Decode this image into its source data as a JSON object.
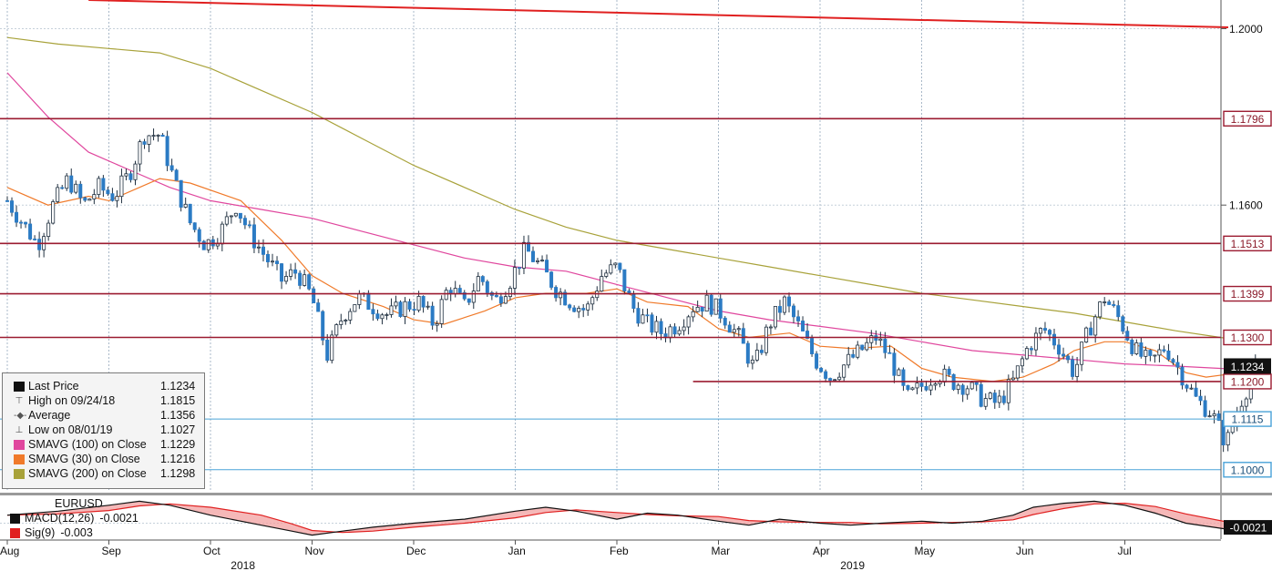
{
  "chart_data": {
    "type": "candlestick",
    "instrument": "EURUSD",
    "x_axis": {
      "months": [
        "Aug",
        "Sep",
        "Oct",
        "Nov",
        "Dec",
        "Jan",
        "Feb",
        "Mar",
        "Apr",
        "May",
        "Jun",
        "Jul"
      ],
      "years": [
        "2018",
        "2019"
      ]
    },
    "y_axis": {
      "range": [
        1.095,
        1.2065
      ],
      "tick_labels": [
        "1.2000",
        "1.1600"
      ]
    },
    "price_levels": [
      {
        "label": "1.1796",
        "value": 1.1796,
        "style": "horizontal-line",
        "color": "#9b1b30"
      },
      {
        "label": "1.1513",
        "value": 1.1513,
        "style": "horizontal-line",
        "color": "#9b1b30"
      },
      {
        "label": "1.1399",
        "value": 1.1399,
        "style": "horizontal-line",
        "color": "#9b1b30"
      },
      {
        "label": "1.1300",
        "value": 1.13,
        "style": "horizontal-line",
        "color": "#9b1b30"
      },
      {
        "label": "1.1200",
        "value": 1.12,
        "style": "horizontal-line",
        "color": "#9b1b30"
      },
      {
        "label": "1.1115",
        "value": 1.1115,
        "style": "horizontal-line",
        "color": "#4aa3d8"
      },
      {
        "label": "1.1000",
        "value": 1.1,
        "style": "horizontal-line",
        "color": "#4aa3d8"
      }
    ],
    "last_price_label": "1.1234",
    "trendline": {
      "from": [
        0.8,
        1.2065
      ],
      "to": [
        12.0,
        1.2003
      ],
      "color": "#e02020"
    },
    "legend": [
      {
        "label": "Last Price",
        "value": "1.1234",
        "symbol": "square",
        "color": "#111111"
      },
      {
        "label": "High on 09/24/18",
        "value": "1.1815",
        "symbol": "high-marker",
        "color": "#555555"
      },
      {
        "label": "Average",
        "value": "1.1356",
        "symbol": "avg-marker",
        "color": "#555555"
      },
      {
        "label": "Low on 08/01/19",
        "value": "1.1027",
        "symbol": "low-marker",
        "color": "#555555"
      },
      {
        "label": "SMAVG (100)  on Close",
        "value": "1.1229",
        "symbol": "square",
        "color": "#e0479e"
      },
      {
        "label": "SMAVG (30)  on Close",
        "value": "1.1216",
        "symbol": "square",
        "color": "#f07a2a"
      },
      {
        "label": "SMAVG (200)  on Close",
        "value": "1.1298",
        "symbol": "square",
        "color": "#a8a23a"
      }
    ],
    "sma": {
      "sma30": {
        "color": "#f07a2a",
        "points": [
          [
            0,
            1.164
          ],
          [
            0.4,
            1.16
          ],
          [
            0.8,
            1.162
          ],
          [
            1.0,
            1.161
          ],
          [
            1.3,
            1.164
          ],
          [
            1.5,
            1.166
          ],
          [
            1.8,
            1.165
          ],
          [
            2.3,
            1.161
          ],
          [
            2.7,
            1.152
          ],
          [
            3.0,
            1.144
          ],
          [
            3.3,
            1.14
          ],
          [
            3.7,
            1.137
          ],
          [
            4.0,
            1.134
          ],
          [
            4.3,
            1.133
          ],
          [
            4.7,
            1.136
          ],
          [
            5.0,
            1.139
          ],
          [
            5.3,
            1.14
          ],
          [
            5.7,
            1.14
          ],
          [
            6.0,
            1.141
          ],
          [
            6.3,
            1.138
          ],
          [
            6.7,
            1.137
          ],
          [
            7.0,
            1.132
          ],
          [
            7.3,
            1.13
          ],
          [
            7.7,
            1.131
          ],
          [
            8.0,
            1.128
          ],
          [
            8.3,
            1.1275
          ],
          [
            8.7,
            1.128
          ],
          [
            9.0,
            1.123
          ],
          [
            9.3,
            1.121
          ],
          [
            9.7,
            1.12
          ],
          [
            10.0,
            1.121
          ],
          [
            10.3,
            1.124
          ],
          [
            10.5,
            1.127
          ],
          [
            10.8,
            1.129
          ],
          [
            11.0,
            1.129
          ],
          [
            11.3,
            1.127
          ],
          [
            11.6,
            1.122
          ],
          [
            11.8,
            1.121
          ],
          [
            12.0,
            1.1216
          ]
        ]
      },
      "sma100": {
        "color": "#e0479e",
        "points": [
          [
            0,
            1.19
          ],
          [
            0.4,
            1.18
          ],
          [
            0.8,
            1.172
          ],
          [
            1.2,
            1.168
          ],
          [
            1.6,
            1.164
          ],
          [
            2.0,
            1.161
          ],
          [
            2.5,
            1.159
          ],
          [
            3.0,
            1.157
          ],
          [
            3.5,
            1.154
          ],
          [
            4.0,
            1.151
          ],
          [
            4.5,
            1.148
          ],
          [
            5.0,
            1.146
          ],
          [
            5.5,
            1.145
          ],
          [
            6.0,
            1.142
          ],
          [
            6.5,
            1.139
          ],
          [
            7.0,
            1.136
          ],
          [
            7.5,
            1.134
          ],
          [
            8.0,
            1.1325
          ],
          [
            8.5,
            1.131
          ],
          [
            9.0,
            1.129
          ],
          [
            9.5,
            1.127
          ],
          [
            10.0,
            1.126
          ],
          [
            10.5,
            1.125
          ],
          [
            11.0,
            1.124
          ],
          [
            11.5,
            1.1235
          ],
          [
            12.0,
            1.1229
          ]
        ]
      },
      "sma200": {
        "color": "#a8a23a",
        "points": [
          [
            0,
            1.198
          ],
          [
            0.5,
            1.1965
          ],
          [
            1.0,
            1.1955
          ],
          [
            1.5,
            1.1945
          ],
          [
            2.0,
            1.191
          ],
          [
            2.5,
            1.186
          ],
          [
            3.0,
            1.181
          ],
          [
            3.5,
            1.175
          ],
          [
            4.0,
            1.169
          ],
          [
            4.5,
            1.164
          ],
          [
            5.0,
            1.159
          ],
          [
            5.5,
            1.155
          ],
          [
            6.0,
            1.152
          ],
          [
            6.5,
            1.15
          ],
          [
            7.0,
            1.148
          ],
          [
            7.5,
            1.146
          ],
          [
            8.0,
            1.144
          ],
          [
            8.5,
            1.142
          ],
          [
            9.0,
            1.14
          ],
          [
            9.5,
            1.1385
          ],
          [
            10.0,
            1.137
          ],
          [
            10.5,
            1.1355
          ],
          [
            11.0,
            1.1335
          ],
          [
            11.5,
            1.1315
          ],
          [
            12.0,
            1.1298
          ]
        ]
      }
    },
    "price_path": [
      [
        0.0,
        1.161
      ],
      [
        0.15,
        1.156
      ],
      [
        0.3,
        1.151
      ],
      [
        0.45,
        1.16
      ],
      [
        0.6,
        1.166
      ],
      [
        0.75,
        1.16
      ],
      [
        0.9,
        1.164
      ],
      [
        1.05,
        1.162
      ],
      [
        1.2,
        1.167
      ],
      [
        1.35,
        1.176
      ],
      [
        1.5,
        1.176
      ],
      [
        1.65,
        1.165
      ],
      [
        1.8,
        1.156
      ],
      [
        1.95,
        1.151
      ],
      [
        2.1,
        1.154
      ],
      [
        2.25,
        1.16
      ],
      [
        2.4,
        1.153
      ],
      [
        2.55,
        1.148
      ],
      [
        2.7,
        1.143
      ],
      [
        2.85,
        1.145
      ],
      [
        3.0,
        1.139
      ],
      [
        3.15,
        1.126
      ],
      [
        3.3,
        1.135
      ],
      [
        3.45,
        1.139
      ],
      [
        3.6,
        1.137
      ],
      [
        3.75,
        1.135
      ],
      [
        3.9,
        1.137
      ],
      [
        4.05,
        1.138
      ],
      [
        4.2,
        1.133
      ],
      [
        4.35,
        1.142
      ],
      [
        4.5,
        1.137
      ],
      [
        4.65,
        1.144
      ],
      [
        4.8,
        1.138
      ],
      [
        4.95,
        1.143
      ],
      [
        5.1,
        1.15
      ],
      [
        5.25,
        1.146
      ],
      [
        5.4,
        1.141
      ],
      [
        5.55,
        1.138
      ],
      [
        5.7,
        1.136
      ],
      [
        5.85,
        1.144
      ],
      [
        6.0,
        1.146
      ],
      [
        6.15,
        1.137
      ],
      [
        6.3,
        1.133
      ],
      [
        6.45,
        1.131
      ],
      [
        6.6,
        1.133
      ],
      [
        6.75,
        1.137
      ],
      [
        6.9,
        1.138
      ],
      [
        7.05,
        1.135
      ],
      [
        7.2,
        1.13
      ],
      [
        7.35,
        1.123
      ],
      [
        7.5,
        1.133
      ],
      [
        7.65,
        1.138
      ],
      [
        7.8,
        1.132
      ],
      [
        7.95,
        1.125
      ],
      [
        8.1,
        1.121
      ],
      [
        8.25,
        1.124
      ],
      [
        8.4,
        1.127
      ],
      [
        8.55,
        1.13
      ],
      [
        8.7,
        1.125
      ],
      [
        8.85,
        1.116
      ],
      [
        9.0,
        1.119
      ],
      [
        9.15,
        1.122
      ],
      [
        9.3,
        1.12
      ],
      [
        9.45,
        1.119
      ],
      [
        9.6,
        1.116
      ],
      [
        9.75,
        1.115
      ],
      [
        9.9,
        1.12
      ],
      [
        10.05,
        1.128
      ],
      [
        10.2,
        1.132
      ],
      [
        10.35,
        1.128
      ],
      [
        10.5,
        1.122
      ],
      [
        10.65,
        1.132
      ],
      [
        10.8,
        1.139
      ],
      [
        10.95,
        1.134
      ],
      [
        11.1,
        1.127
      ],
      [
        11.25,
        1.124
      ],
      [
        11.4,
        1.128
      ],
      [
        11.55,
        1.122
      ],
      [
        11.7,
        1.116
      ],
      [
        11.85,
        1.113
      ],
      [
        12.0,
        1.106
      ],
      [
        12.15,
        1.116
      ],
      [
        12.3,
        1.1234
      ]
    ],
    "macd": {
      "label": "MACD(12,26)",
      "value": "-0.0021",
      "signal_label": "Sig(9)",
      "signal_value": "-0.003",
      "last_label": "-0.0021",
      "color": "#111111",
      "signal_color": "#e02020",
      "points": [
        [
          0,
          0.004
        ],
        [
          0.5,
          0.006
        ],
        [
          1.0,
          0.009
        ],
        [
          1.3,
          0.011
        ],
        [
          1.6,
          0.009
        ],
        [
          2.0,
          0.004
        ],
        [
          2.5,
          -0.001
        ],
        [
          2.8,
          -0.004
        ],
        [
          3.0,
          -0.006
        ],
        [
          3.3,
          -0.004
        ],
        [
          3.6,
          -0.002
        ],
        [
          4.0,
          0.0
        ],
        [
          4.5,
          0.002
        ],
        [
          5.0,
          0.006
        ],
        [
          5.3,
          0.008
        ],
        [
          5.6,
          0.006
        ],
        [
          6.0,
          0.002
        ],
        [
          6.3,
          0.005
        ],
        [
          6.6,
          0.004
        ],
        [
          7.0,
          0.001
        ],
        [
          7.3,
          -0.001
        ],
        [
          7.6,
          0.002
        ],
        [
          8.0,
          0.0
        ],
        [
          8.3,
          -0.001
        ],
        [
          8.6,
          0.0
        ],
        [
          9.0,
          0.001
        ],
        [
          9.3,
          0.0
        ],
        [
          9.6,
          0.001
        ],
        [
          9.9,
          0.004
        ],
        [
          10.1,
          0.008
        ],
        [
          10.4,
          0.01
        ],
        [
          10.7,
          0.011
        ],
        [
          11.0,
          0.009
        ],
        [
          11.3,
          0.005
        ],
        [
          11.6,
          0.0
        ],
        [
          12.0,
          -0.003
        ],
        [
          12.3,
          -0.0021
        ]
      ]
    }
  }
}
